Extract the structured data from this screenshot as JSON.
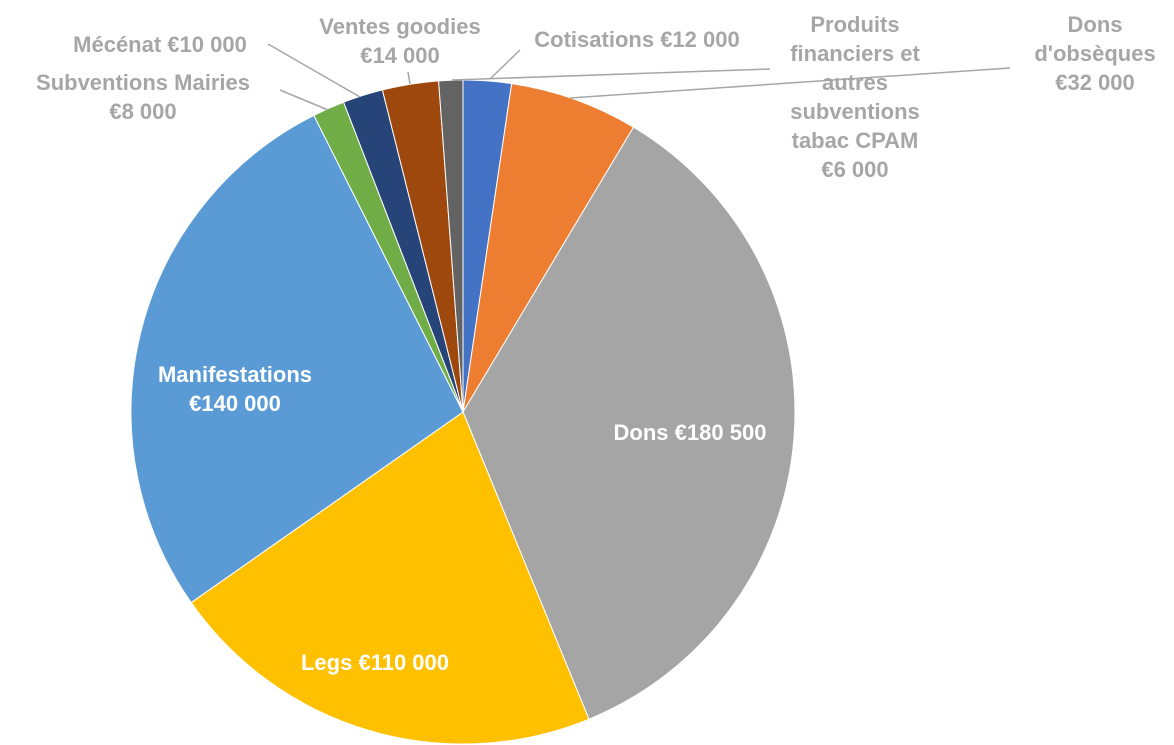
{
  "chart_data": {
    "type": "pie",
    "categories": [
      "Cotisations",
      "Dons d'obsèques",
      "Dons",
      "Legs",
      "Manifestations",
      "Subventions Mairies",
      "Mécénat",
      "Ventes goodies",
      "Produits financiers et autres subventions tabac CPAM"
    ],
    "values": [
      12000,
      32000,
      180500,
      110000,
      140000,
      8000,
      10000,
      14000,
      6000
    ],
    "value_labels": [
      "€12 000",
      "€32 000",
      "€180 500",
      "€110 000",
      "€140 000",
      "€8 000",
      "€10 000",
      "€14 000",
      "€6 000"
    ],
    "colors": [
      "#4472c4",
      "#ed7d31",
      "#a5a5a5",
      "#ffc000",
      "#5b9bd5",
      "#70ad47",
      "#264478",
      "#9e480e",
      "#636363"
    ]
  }
}
